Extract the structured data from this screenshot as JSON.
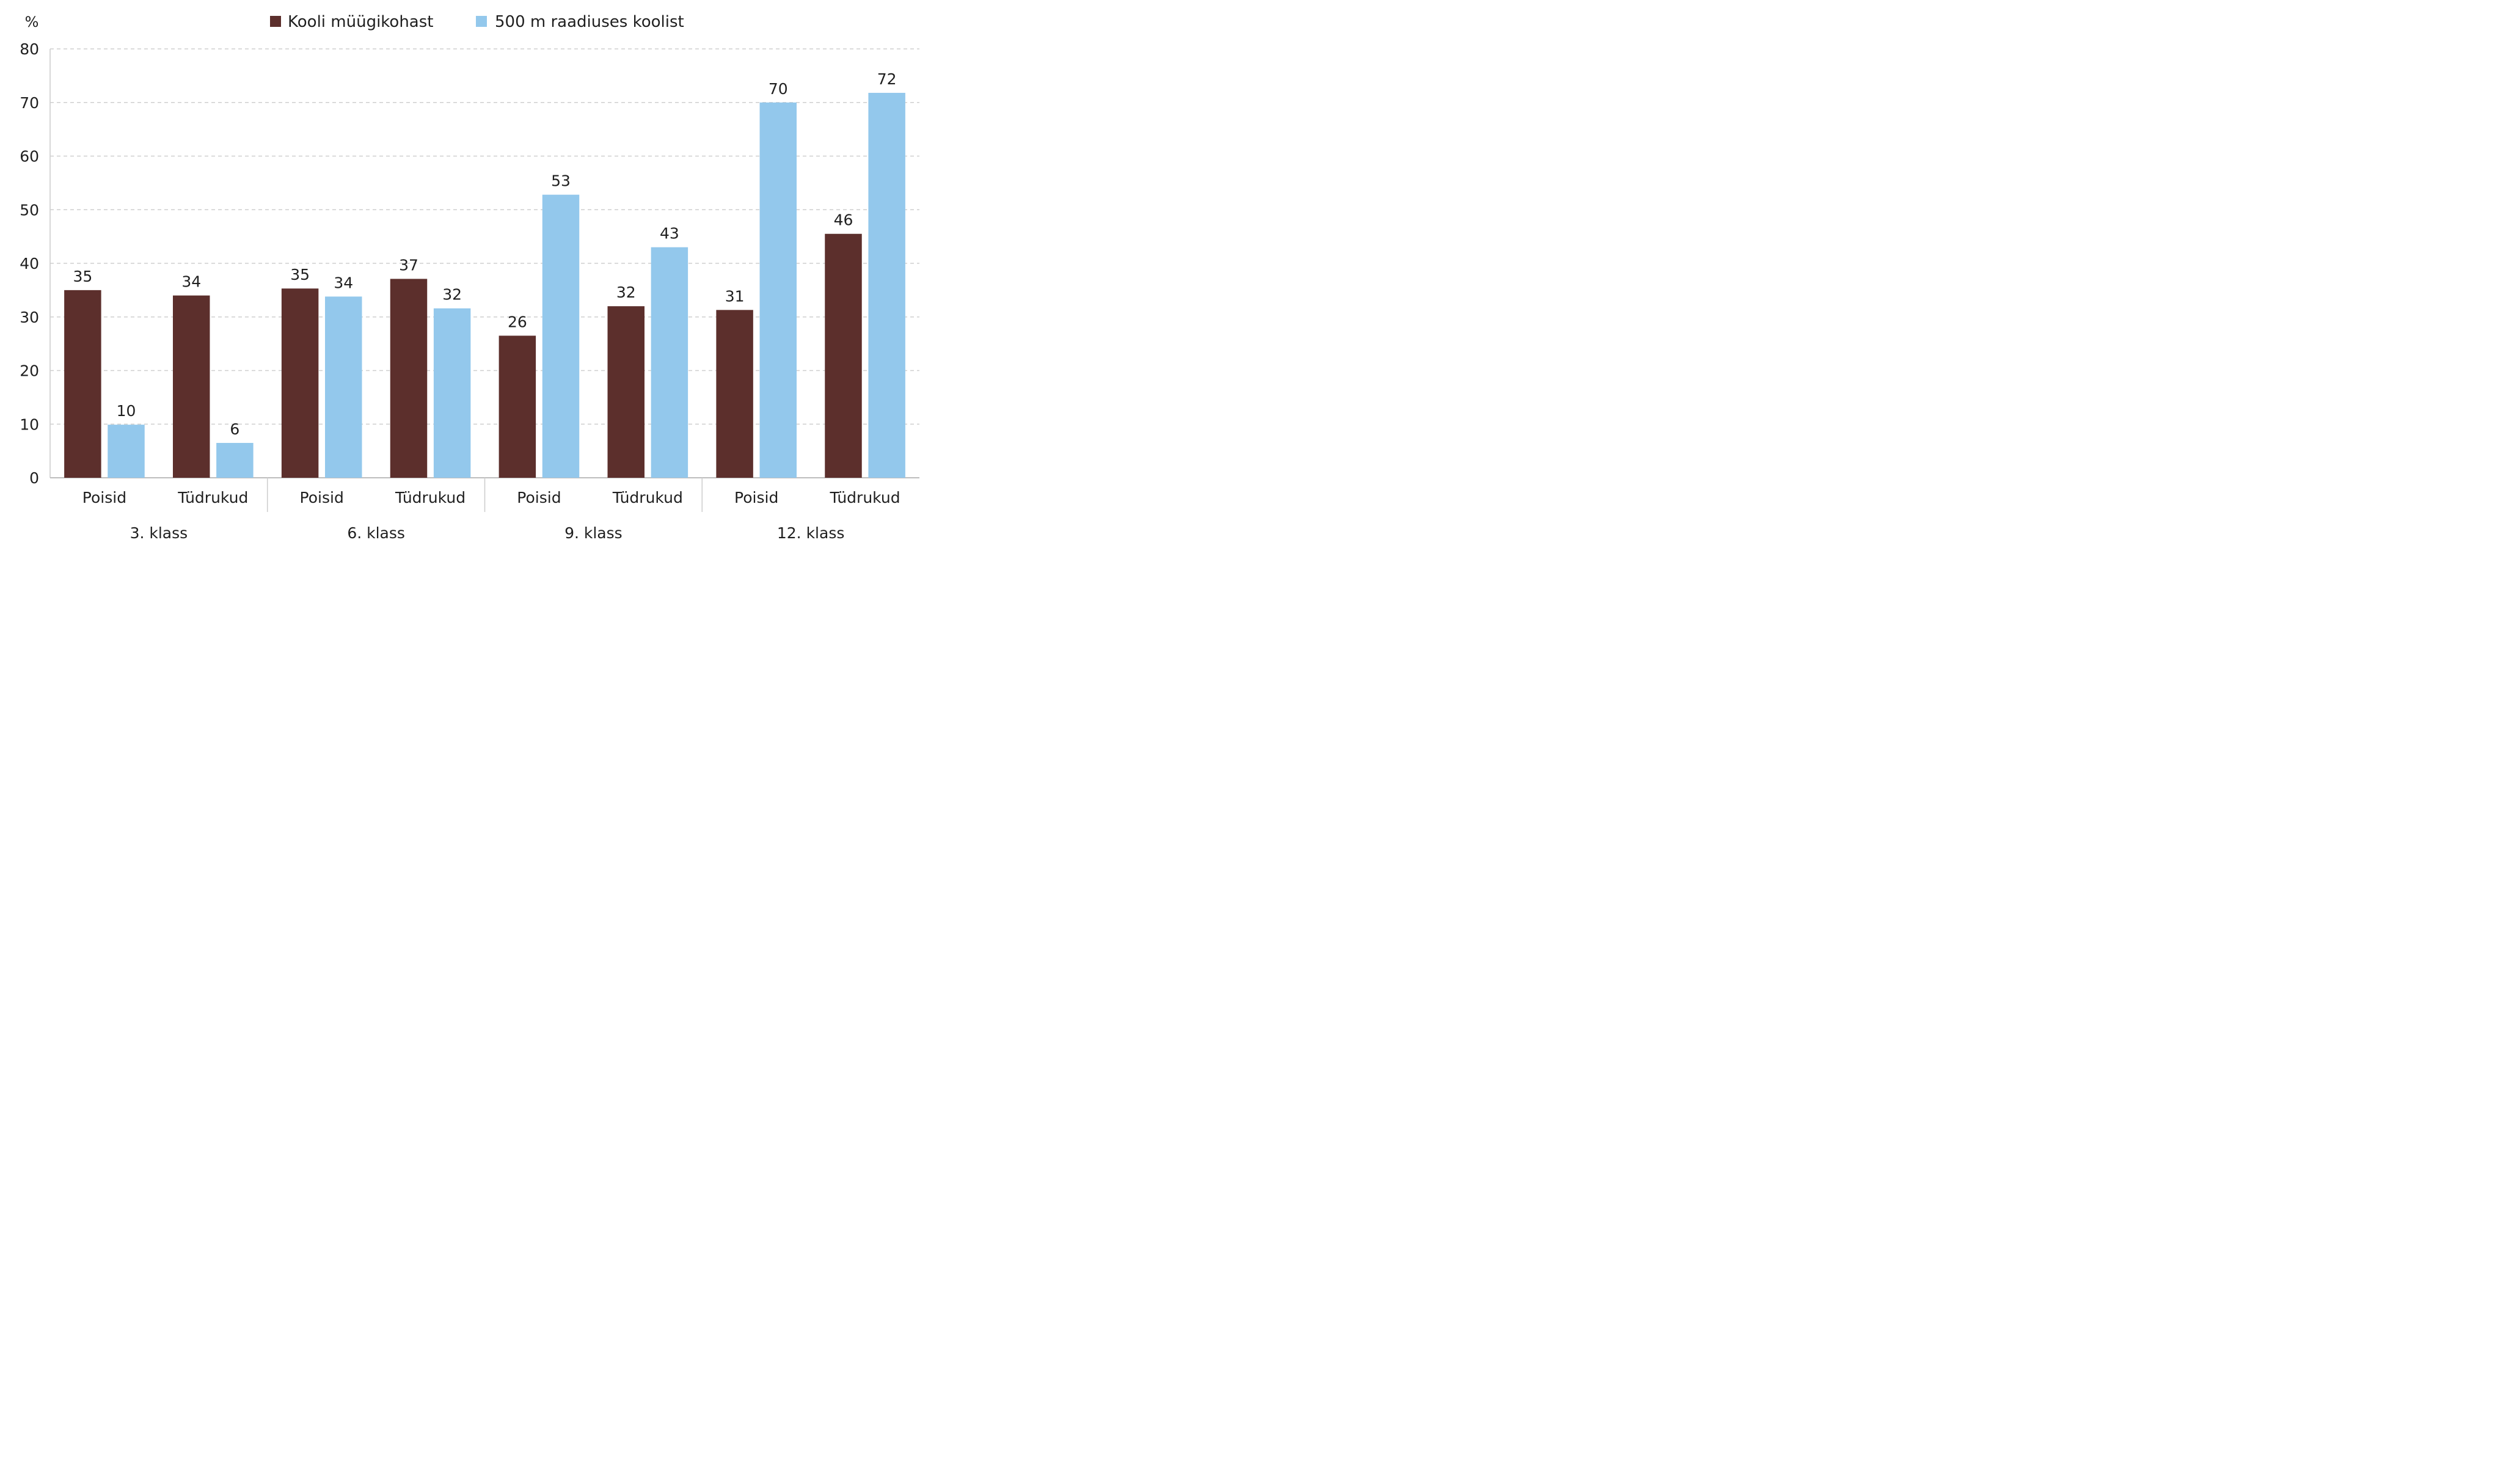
{
  "chart_data": {
    "type": "bar",
    "y_unit_label": "%",
    "ylim": [
      0,
      80
    ],
    "y_ticks": [
      0,
      10,
      20,
      30,
      40,
      50,
      60,
      70,
      80
    ],
    "grid": true,
    "legend_position": "top-center",
    "group_label_row": "below-subcategories",
    "groups": [
      {
        "label": "3. klass",
        "subcategories": [
          "Poisid",
          "Tüdrukud"
        ]
      },
      {
        "label": "6. klass",
        "subcategories": [
          "Poisid",
          "Tüdrukud"
        ]
      },
      {
        "label": "9. klass",
        "subcategories": [
          "Poisid",
          "Tüdrukud"
        ]
      },
      {
        "label": "12. klass",
        "subcategories": [
          "Poisid",
          "Tüdrukud"
        ]
      }
    ],
    "series": [
      {
        "name": "Kooli müügikohast",
        "color": "#5c2f2c",
        "values": [
          35,
          34,
          35.3,
          37.1,
          26.5,
          32,
          31.3,
          45.5
        ],
        "labels": [
          "35",
          "34",
          "35",
          "37",
          "26",
          "32",
          "31",
          "46"
        ]
      },
      {
        "name": "500 m raadiuses koolist",
        "color": "#93c8ec",
        "values": [
          9.9,
          6.5,
          33.8,
          31.6,
          52.8,
          43,
          70,
          71.8
        ],
        "labels": [
          "10",
          "6",
          "34",
          "32",
          "53",
          "43",
          "70",
          "72"
        ]
      }
    ]
  }
}
